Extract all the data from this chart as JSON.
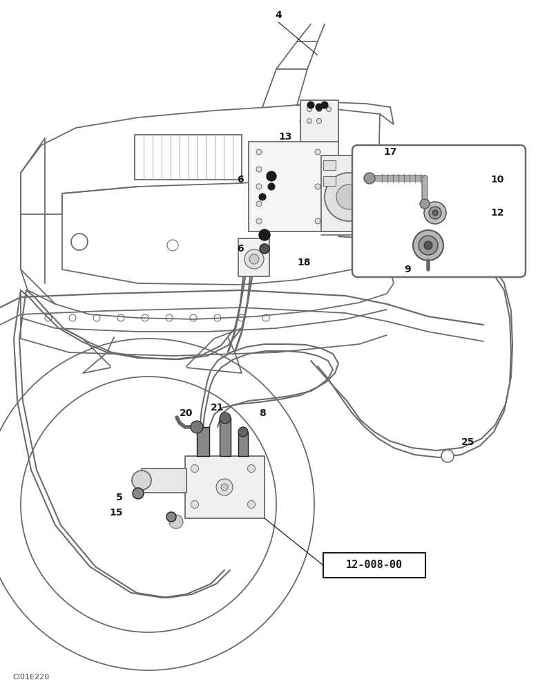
{
  "bg_color": "#ffffff",
  "lc": "#6a6a6a",
  "dc": "#1a1a1a",
  "fig_width": 7.92,
  "fig_height": 10.0,
  "dpi": 100,
  "watermark": "CI01E220",
  "part_ref": "12-008-00"
}
